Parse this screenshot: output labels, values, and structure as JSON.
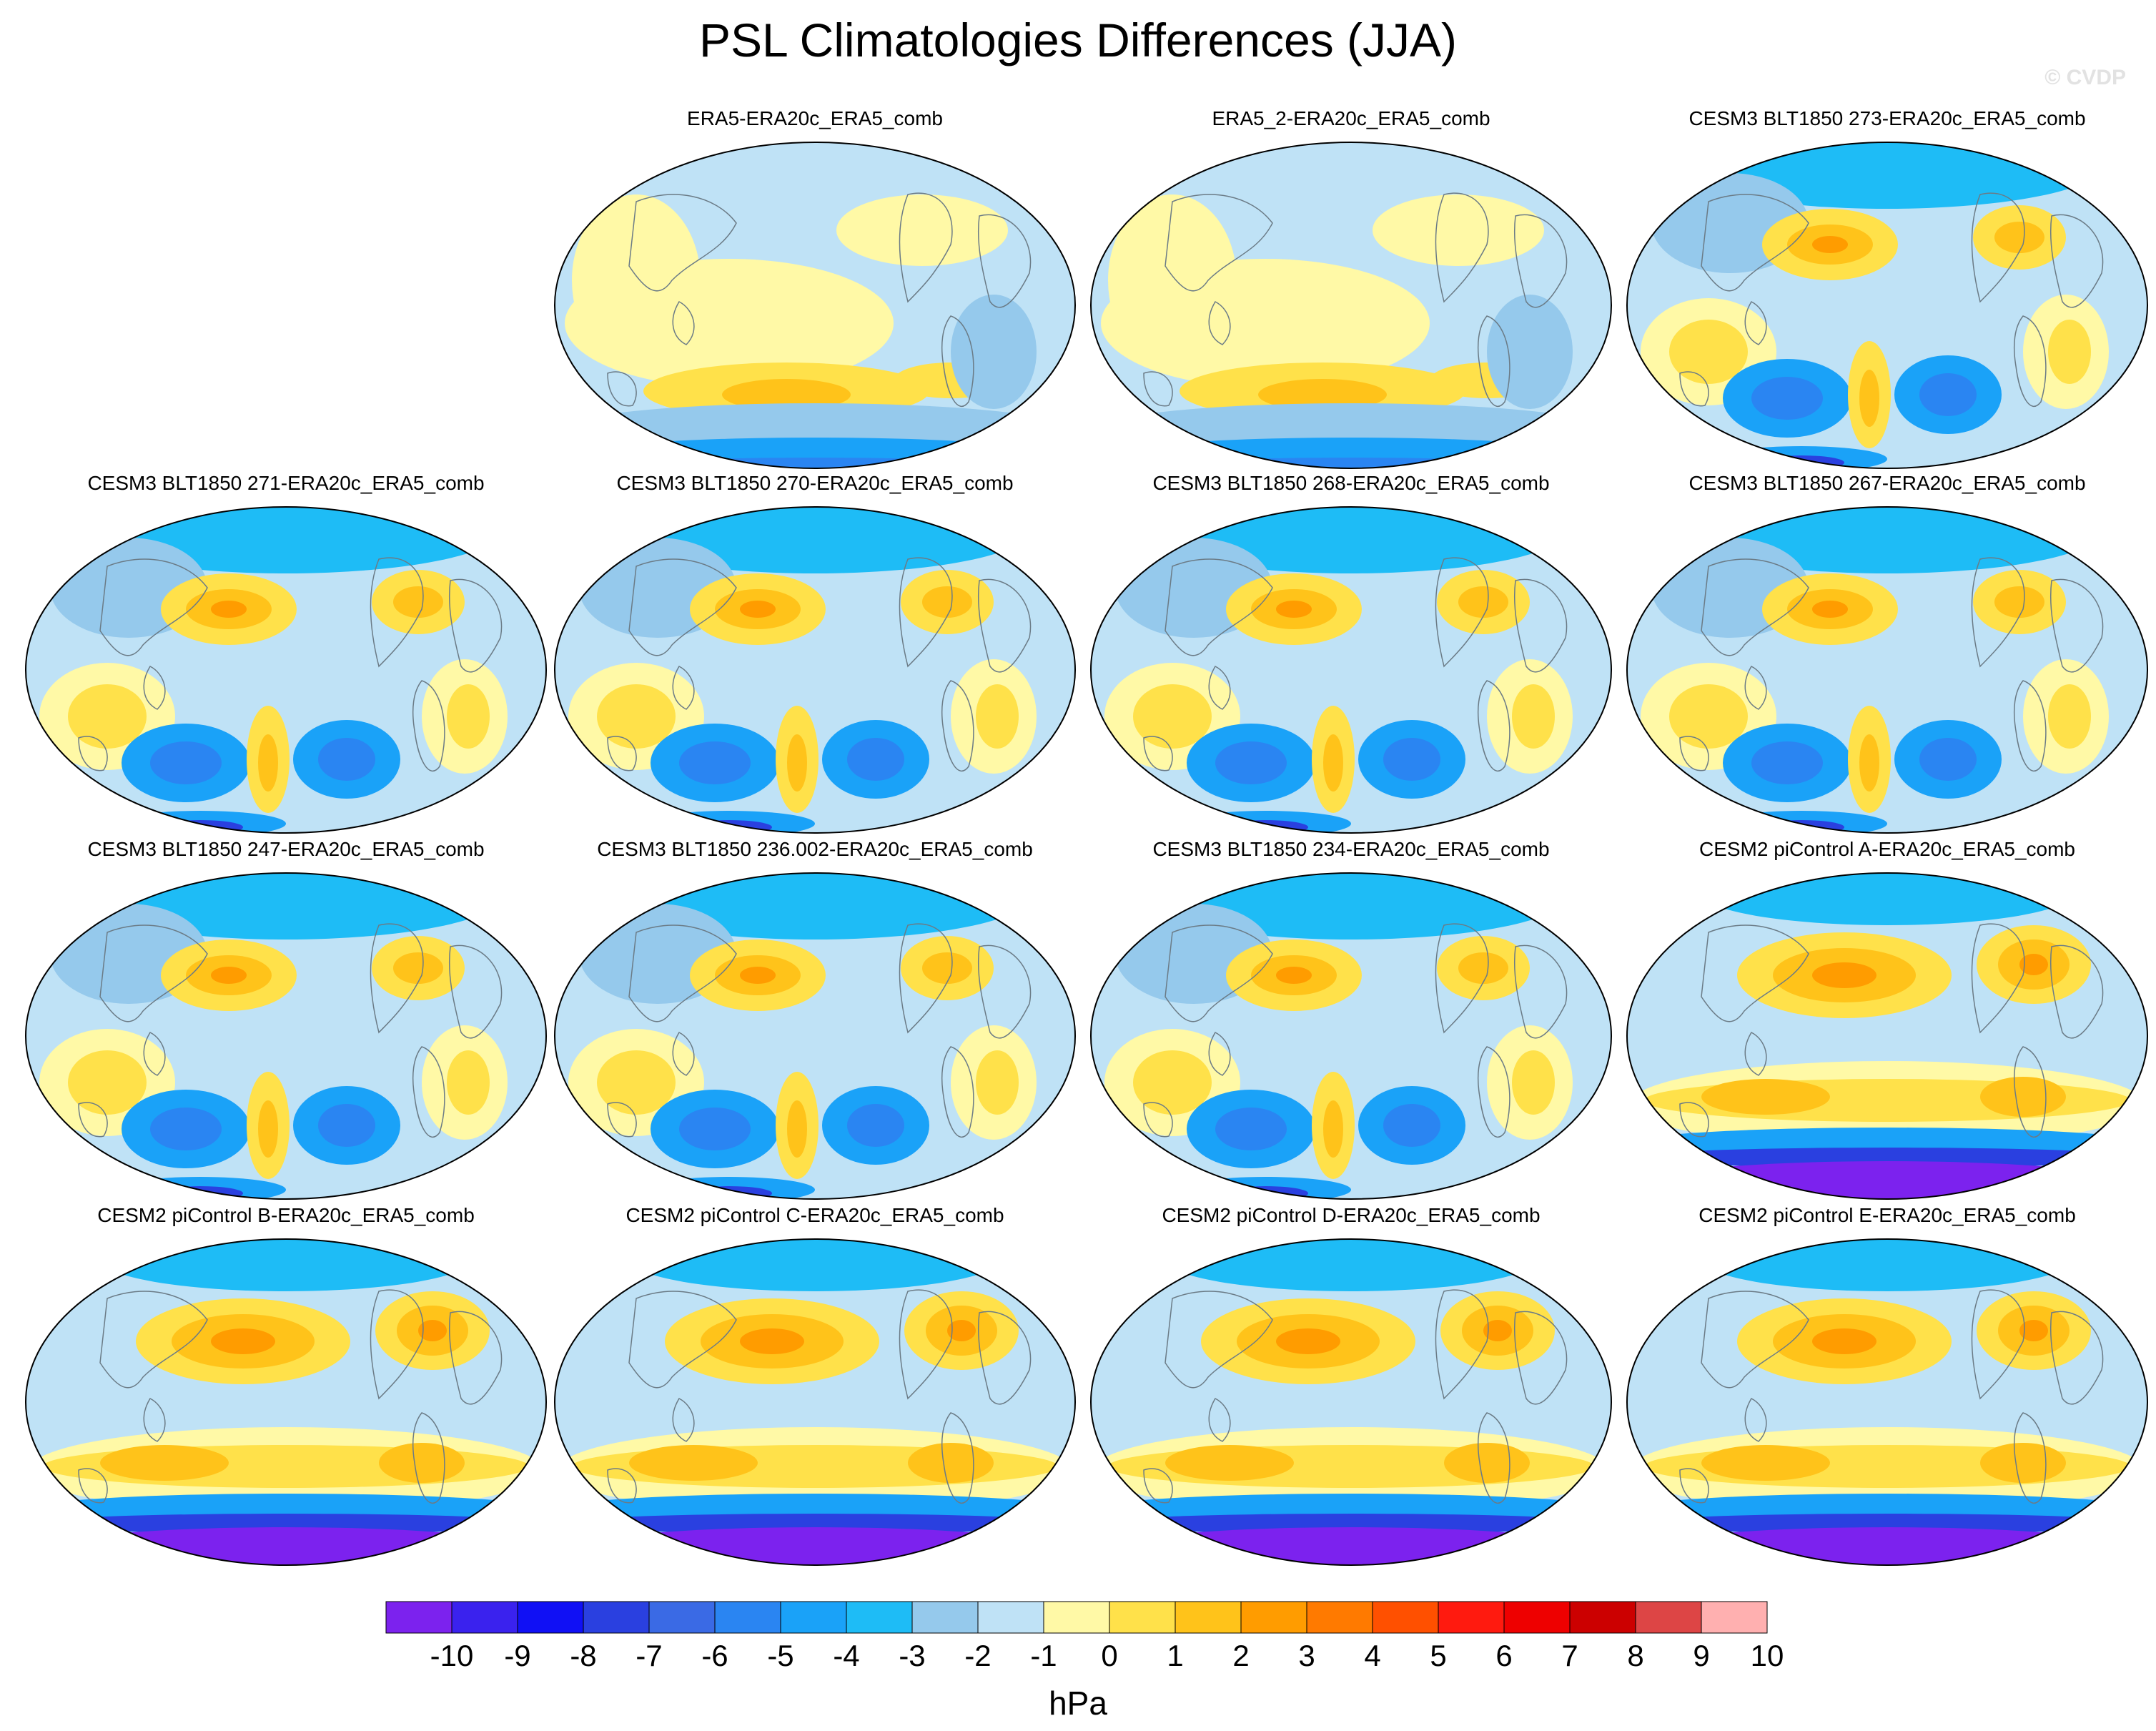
{
  "title": "PSL Climatologies Differences (JJA)",
  "watermark": "© CVDP",
  "panels": [
    {
      "title": "",
      "pattern": "none"
    },
    {
      "title": "ERA5-ERA20c_ERA5_comb",
      "pattern": "era5"
    },
    {
      "title": "ERA5_2-ERA20c_ERA5_comb",
      "pattern": "era5"
    },
    {
      "title": "CESM3 BLT1850 273-ERA20c_ERA5_comb",
      "pattern": "cesm3"
    },
    {
      "title": "CESM3 BLT1850 271-ERA20c_ERA5_comb",
      "pattern": "cesm3"
    },
    {
      "title": "CESM3 BLT1850 270-ERA20c_ERA5_comb",
      "pattern": "cesm3"
    },
    {
      "title": "CESM3 BLT1850 268-ERA20c_ERA5_comb",
      "pattern": "cesm3"
    },
    {
      "title": "CESM3 BLT1850 267-ERA20c_ERA5_comb",
      "pattern": "cesm3"
    },
    {
      "title": "CESM3 BLT1850 247-ERA20c_ERA5_comb",
      "pattern": "cesm3"
    },
    {
      "title": "CESM3 BLT1850 236.002-ERA20c_ERA5_comb",
      "pattern": "cesm3"
    },
    {
      "title": "CESM3 BLT1850 234-ERA20c_ERA5_comb",
      "pattern": "cesm3"
    },
    {
      "title": "CESM2 piControl A-ERA20c_ERA5_comb",
      "pattern": "cesm2"
    },
    {
      "title": "CESM2 piControl B-ERA20c_ERA5_comb",
      "pattern": "cesm2"
    },
    {
      "title": "CESM2 piControl C-ERA20c_ERA5_comb",
      "pattern": "cesm2"
    },
    {
      "title": "CESM2 piControl D-ERA20c_ERA5_comb",
      "pattern": "cesm2"
    },
    {
      "title": "CESM2 piControl E-ERA20c_ERA5_comb",
      "pattern": "cesm2"
    }
  ],
  "colorbar": {
    "colors": [
      "#7c22ee",
      "#3a22ee",
      "#1010f5",
      "#2a40e0",
      "#3a6ae5",
      "#2a85f2",
      "#1aa2f8",
      "#1ebcf6",
      "#95c9ec",
      "#bfe2f6",
      "#fff9a6",
      "#ffe14a",
      "#ffc31a",
      "#ff9c00",
      "#ff7a00",
      "#ff5000",
      "#ff1a0f",
      "#ee0000",
      "#cc0000",
      "#dd4545",
      "#ffb0b0"
    ],
    "labels": [
      "-10",
      "-9",
      "-8",
      "-7",
      "-6",
      "-5",
      "-4",
      "-3",
      "-2",
      "-1",
      "0",
      "1",
      "2",
      "3",
      "4",
      "5",
      "6",
      "7",
      "8",
      "9",
      "10"
    ],
    "units": "hPa"
  }
}
